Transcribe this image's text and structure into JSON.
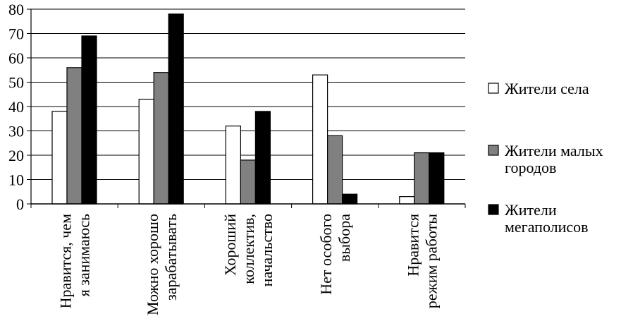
{
  "chart_data": {
    "type": "bar",
    "categories": [
      [
        "Нравится, чем",
        "я занимаюсь"
      ],
      [
        "Можно хорошо",
        "зарабатывать"
      ],
      [
        "Хороший",
        "коллектив,",
        "начальство"
      ],
      [
        "Нет особого",
        "выбора"
      ],
      [
        "Нравится",
        "режим работы"
      ]
    ],
    "series": [
      {
        "name": "Жители села",
        "name_lines": [
          "Жители села"
        ],
        "color": "#ffffff",
        "values": [
          38,
          43,
          32,
          53,
          3
        ]
      },
      {
        "name": "Жители малых городов",
        "name_lines": [
          "Жители малых",
          "городов"
        ],
        "color": "#808080",
        "values": [
          56,
          54,
          18,
          28,
          21
        ]
      },
      {
        "name": "Жители мегаполисов",
        "name_lines": [
          "Жители",
          "мегаполисов"
        ],
        "color": "#000000",
        "values": [
          69,
          78,
          38,
          4,
          21
        ]
      }
    ],
    "ylim": [
      0,
      80
    ],
    "yticks": [
      "0",
      "10",
      "20",
      "30",
      "40",
      "50",
      "60",
      "70",
      "80"
    ],
    "grid": true,
    "legend_position": "right",
    "title": "",
    "xlabel": "",
    "ylabel": ""
  }
}
